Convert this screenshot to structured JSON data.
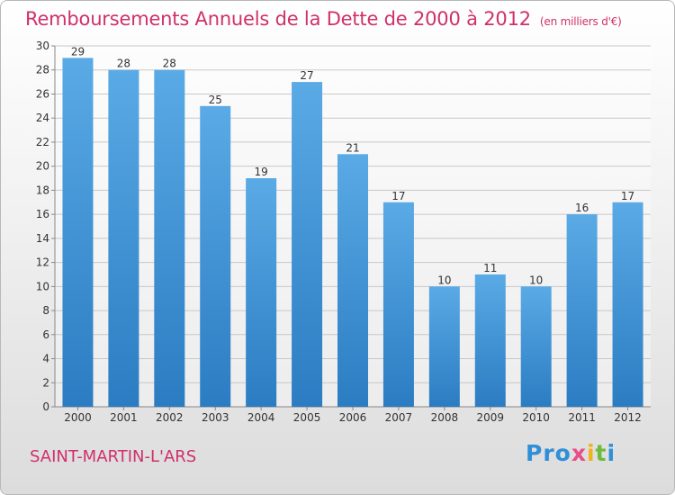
{
  "header": {
    "title": "Remboursements Annuels de la Dette de 2000 à 2012",
    "unit": "(en milliers d'€)"
  },
  "footer": {
    "place": "SAINT-MARTIN-L'ARS",
    "logo": [
      "Pro",
      "x",
      "i",
      "t",
      "i"
    ]
  },
  "colors": {
    "bar_top": "#5aaae6",
    "bar_bottom": "#2b7cc2",
    "title": "#d0306a",
    "grid": "#c8c8c8"
  },
  "chart_data": {
    "type": "bar",
    "title": "Remboursements Annuels de la Dette de 2000 à 2012",
    "xlabel": "",
    "ylabel": "",
    "categories": [
      "2000",
      "2001",
      "2002",
      "2003",
      "2004",
      "2005",
      "2006",
      "2007",
      "2008",
      "2009",
      "2010",
      "2011",
      "2012"
    ],
    "values": [
      29,
      28,
      28,
      25,
      19,
      27,
      21,
      17,
      10,
      11,
      10,
      16,
      17
    ],
    "ylim": [
      0,
      30
    ],
    "yticks": [
      0,
      2,
      4,
      6,
      8,
      10,
      12,
      14,
      16,
      18,
      20,
      22,
      24,
      26,
      28,
      30
    ],
    "grid": true,
    "legend": "none"
  }
}
